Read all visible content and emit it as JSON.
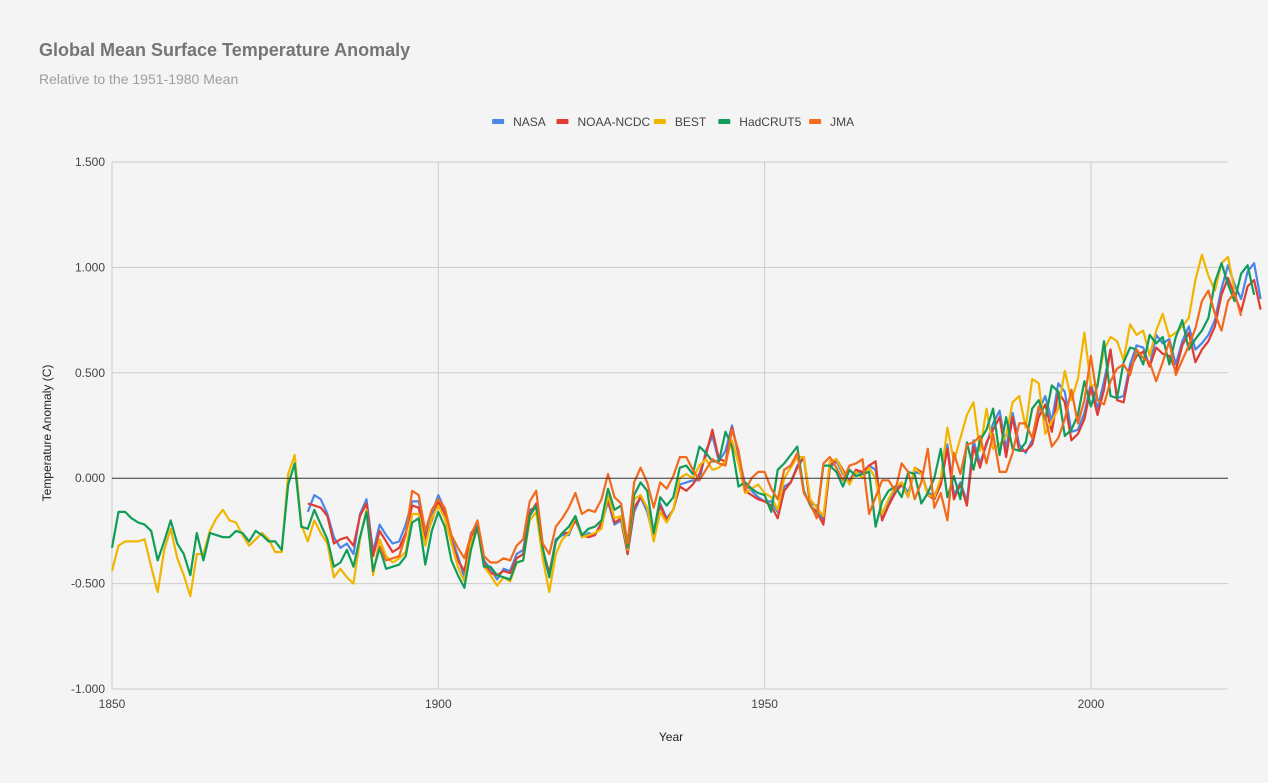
{
  "chart_data": {
    "type": "line",
    "title": "Global Mean Surface Temperature Anomaly",
    "subtitle": "Relative to the 1951-1980 Mean",
    "xlabel": "Year",
    "ylabel": "Temperature Anomaly (C)",
    "xlim": [
      1850,
      2021
    ],
    "ylim": [
      -1.0,
      1.5
    ],
    "x_ticks": [
      "1850",
      "1900",
      "1950",
      "2000"
    ],
    "y_ticks": [
      "1.500",
      "1.000",
      "0.500",
      "0.000",
      "-0.500",
      "-1.000"
    ],
    "grid": true,
    "legend_position": "top",
    "series": [
      {
        "name": "NASA",
        "color": "#4a86e8",
        "start": 1880,
        "values": [
          -0.16,
          -0.08,
          -0.1,
          -0.17,
          -0.28,
          -0.33,
          -0.31,
          -0.36,
          -0.17,
          -0.1,
          -0.35,
          -0.22,
          -0.27,
          -0.31,
          -0.3,
          -0.22,
          -0.11,
          -0.11,
          -0.27,
          -0.17,
          -0.08,
          -0.15,
          -0.28,
          -0.37,
          -0.47,
          -0.26,
          -0.22,
          -0.39,
          -0.43,
          -0.48,
          -0.43,
          -0.44,
          -0.36,
          -0.34,
          -0.15,
          -0.14,
          -0.36,
          -0.46,
          -0.29,
          -0.27,
          -0.27,
          -0.19,
          -0.28,
          -0.26,
          -0.27,
          -0.22,
          -0.11,
          -0.22,
          -0.2,
          -0.36,
          -0.16,
          -0.09,
          -0.16,
          -0.28,
          -0.12,
          -0.19,
          -0.15,
          -0.03,
          -0.02,
          -0.01,
          -0.01,
          0.13,
          0.2,
          0.08,
          0.13,
          0.25,
          0.11,
          -0.03,
          -0.06,
          -0.09,
          -0.11,
          -0.11,
          -0.16,
          -0.04,
          -0.02,
          0.06,
          0.1,
          -0.12,
          -0.13,
          -0.2,
          0.05,
          0.08,
          0.02,
          -0.01,
          0.04,
          0.02,
          0.06,
          0.04,
          -0.2,
          -0.11,
          -0.06,
          -0.02,
          -0.07,
          0.03,
          0.02,
          -0.07,
          -0.08,
          -0.02,
          0.16,
          -0.08,
          -0.02,
          -0.11,
          0.18,
          0.07,
          0.16,
          0.26,
          0.32,
          0.14,
          0.31,
          0.16,
          0.12,
          0.18,
          0.32,
          0.39,
          0.27,
          0.45,
          0.41,
          0.22,
          0.23,
          0.31,
          0.45,
          0.33,
          0.46,
          0.61,
          0.38,
          0.39,
          0.54,
          0.63,
          0.62,
          0.53,
          0.68,
          0.64,
          0.66,
          0.54,
          0.65,
          0.72,
          0.61,
          0.64,
          0.68,
          0.75,
          0.9,
          1.01,
          0.92,
          0.85,
          0.98,
          1.02,
          0.85
        ]
      },
      {
        "name": "NOAA-NCDC",
        "color": "#e03c31",
        "start": 1880,
        "values": [
          -0.12,
          -0.13,
          -0.14,
          -0.18,
          -0.31,
          -0.29,
          -0.28,
          -0.32,
          -0.18,
          -0.12,
          -0.37,
          -0.25,
          -0.3,
          -0.35,
          -0.33,
          -0.26,
          -0.13,
          -0.14,
          -0.29,
          -0.2,
          -0.11,
          -0.17,
          -0.3,
          -0.39,
          -0.44,
          -0.28,
          -0.23,
          -0.4,
          -0.45,
          -0.46,
          -0.44,
          -0.45,
          -0.38,
          -0.36,
          -0.17,
          -0.12,
          -0.34,
          -0.45,
          -0.3,
          -0.26,
          -0.26,
          -0.2,
          -0.27,
          -0.28,
          -0.27,
          -0.21,
          -0.1,
          -0.21,
          -0.19,
          -0.36,
          -0.14,
          -0.09,
          -0.14,
          -0.26,
          -0.13,
          -0.2,
          -0.15,
          -0.04,
          -0.06,
          -0.03,
          0.02,
          0.11,
          0.23,
          0.09,
          0.08,
          0.24,
          0.12,
          -0.06,
          -0.08,
          -0.1,
          -0.11,
          -0.13,
          -0.19,
          -0.06,
          -0.02,
          0.05,
          0.1,
          -0.13,
          -0.16,
          -0.22,
          0.06,
          0.09,
          0.04,
          -0.02,
          0.04,
          0.03,
          0.06,
          0.08,
          -0.2,
          -0.13,
          -0.07,
          -0.03,
          -0.09,
          0.05,
          0.03,
          -0.08,
          -0.1,
          -0.03,
          0.14,
          -0.1,
          -0.03,
          -0.13,
          0.15,
          0.05,
          0.17,
          0.23,
          0.29,
          0.1,
          0.29,
          0.13,
          0.13,
          0.16,
          0.29,
          0.35,
          0.22,
          0.41,
          0.36,
          0.18,
          0.21,
          0.28,
          0.43,
          0.3,
          0.42,
          0.61,
          0.37,
          0.36,
          0.52,
          0.58,
          0.6,
          0.53,
          0.62,
          0.59,
          0.58,
          0.51,
          0.63,
          0.69,
          0.55,
          0.61,
          0.65,
          0.72,
          0.87,
          0.95,
          0.87,
          0.79,
          0.91,
          0.94,
          0.8
        ]
      },
      {
        "name": "BEST",
        "color": "#f1b500",
        "start": 1850,
        "values": [
          -0.44,
          -0.32,
          -0.3,
          -0.3,
          -0.3,
          -0.29,
          -0.42,
          -0.54,
          -0.34,
          -0.24,
          -0.38,
          -0.46,
          -0.56,
          -0.36,
          -0.36,
          -0.25,
          -0.19,
          -0.15,
          -0.2,
          -0.21,
          -0.27,
          -0.32,
          -0.29,
          -0.26,
          -0.29,
          -0.35,
          -0.35,
          0.02,
          0.11,
          -0.22,
          -0.3,
          -0.2,
          -0.26,
          -0.31,
          -0.47,
          -0.43,
          -0.47,
          -0.5,
          -0.29,
          -0.15,
          -0.46,
          -0.29,
          -0.37,
          -0.4,
          -0.38,
          -0.35,
          -0.17,
          -0.17,
          -0.32,
          -0.19,
          -0.13,
          -0.19,
          -0.31,
          -0.42,
          -0.49,
          -0.31,
          -0.24,
          -0.42,
          -0.46,
          -0.51,
          -0.47,
          -0.49,
          -0.4,
          -0.39,
          -0.2,
          -0.16,
          -0.38,
          -0.54,
          -0.36,
          -0.29,
          -0.26,
          -0.18,
          -0.28,
          -0.27,
          -0.26,
          -0.24,
          -0.08,
          -0.19,
          -0.18,
          -0.34,
          -0.1,
          -0.08,
          -0.14,
          -0.3,
          -0.16,
          -0.21,
          -0.15,
          0.0,
          0.02,
          0.0,
          0.06,
          0.09,
          0.04,
          0.05,
          0.08,
          0.18,
          0.07,
          -0.07,
          -0.05,
          -0.03,
          -0.07,
          -0.09,
          -0.15,
          0.0,
          0.05,
          0.1,
          0.1,
          -0.1,
          -0.14,
          -0.18,
          0.08,
          0.09,
          0.03,
          -0.03,
          0.03,
          0.0,
          0.05,
          0.0,
          -0.17,
          -0.1,
          -0.04,
          -0.02,
          -0.09,
          0.05,
          0.02,
          -0.08,
          -0.09,
          0.0,
          0.24,
          0.08,
          0.19,
          0.3,
          0.36,
          0.13,
          0.33,
          0.14,
          0.16,
          0.2,
          0.36,
          0.39,
          0.24,
          0.47,
          0.45,
          0.21,
          0.27,
          0.33,
          0.51,
          0.37,
          0.47,
          0.69,
          0.44,
          0.44,
          0.61,
          0.67,
          0.65,
          0.56,
          0.73,
          0.68,
          0.7,
          0.58,
          0.7,
          0.78,
          0.67,
          0.69,
          0.72,
          0.76,
          0.94,
          1.06,
          0.96,
          0.89,
          1.02,
          1.05,
          0.89
        ]
      },
      {
        "name": "HadCRUT5",
        "color": "#0f9d58",
        "start": 1850,
        "values": [
          -0.33,
          -0.16,
          -0.16,
          -0.19,
          -0.21,
          -0.22,
          -0.25,
          -0.39,
          -0.3,
          -0.2,
          -0.31,
          -0.36,
          -0.46,
          -0.26,
          -0.39,
          -0.26,
          -0.27,
          -0.28,
          -0.28,
          -0.25,
          -0.26,
          -0.3,
          -0.25,
          -0.27,
          -0.3,
          -0.3,
          -0.34,
          -0.03,
          0.07,
          -0.23,
          -0.24,
          -0.15,
          -0.22,
          -0.29,
          -0.42,
          -0.4,
          -0.34,
          -0.42,
          -0.28,
          -0.16,
          -0.44,
          -0.33,
          -0.43,
          -0.42,
          -0.41,
          -0.37,
          -0.21,
          -0.19,
          -0.41,
          -0.25,
          -0.16,
          -0.23,
          -0.39,
          -0.46,
          -0.52,
          -0.34,
          -0.23,
          -0.42,
          -0.42,
          -0.46,
          -0.47,
          -0.48,
          -0.4,
          -0.39,
          -0.18,
          -0.13,
          -0.33,
          -0.47,
          -0.3,
          -0.26,
          -0.23,
          -0.18,
          -0.27,
          -0.24,
          -0.23,
          -0.2,
          -0.05,
          -0.15,
          -0.13,
          -0.33,
          -0.08,
          -0.02,
          -0.06,
          -0.26,
          -0.09,
          -0.13,
          -0.09,
          0.05,
          0.06,
          0.02,
          0.15,
          0.12,
          0.08,
          0.08,
          0.22,
          0.15,
          -0.04,
          -0.02,
          -0.05,
          -0.07,
          -0.08,
          -0.16,
          0.04,
          0.07,
          0.11,
          0.15,
          -0.06,
          -0.13,
          -0.18,
          0.06,
          0.06,
          0.03,
          -0.04,
          0.04,
          0.01,
          0.02,
          0.03,
          -0.23,
          -0.11,
          -0.06,
          -0.04,
          -0.09,
          0.03,
          0.02,
          -0.12,
          -0.07,
          0.0,
          0.14,
          -0.09,
          0.01,
          -0.1,
          0.17,
          0.04,
          0.18,
          0.23,
          0.33,
          0.11,
          0.29,
          0.14,
          0.13,
          0.17,
          0.33,
          0.37,
          0.28,
          0.44,
          0.41,
          0.2,
          0.23,
          0.3,
          0.46,
          0.34,
          0.44,
          0.65,
          0.39,
          0.38,
          0.55,
          0.62,
          0.61,
          0.54,
          0.68,
          0.64,
          0.67,
          0.54,
          0.67,
          0.75,
          0.61,
          0.66,
          0.7,
          0.76,
          0.93,
          1.02,
          0.92,
          0.84,
          0.97,
          1.01,
          0.87
        ]
      },
      {
        "name": "JMA",
        "color": "#f26a1b",
        "start": 1891,
        "values": [
          -0.32,
          -0.39,
          -0.38,
          -0.37,
          -0.27,
          -0.06,
          -0.08,
          -0.25,
          -0.15,
          -0.1,
          -0.14,
          -0.27,
          -0.33,
          -0.38,
          -0.27,
          -0.2,
          -0.37,
          -0.4,
          -0.4,
          -0.38,
          -0.39,
          -0.32,
          -0.29,
          -0.11,
          -0.06,
          -0.31,
          -0.36,
          -0.23,
          -0.19,
          -0.14,
          -0.07,
          -0.17,
          -0.15,
          -0.16,
          -0.1,
          0.02,
          -0.09,
          -0.12,
          -0.31,
          -0.02,
          0.05,
          -0.02,
          -0.14,
          -0.02,
          -0.05,
          0.01,
          0.1,
          0.1,
          0.04,
          -0.01,
          0.04,
          0.09,
          0.07,
          0.06,
          0.23,
          0.13,
          -0.06,
          0.0,
          0.03,
          0.03,
          -0.05,
          -0.1,
          0.04,
          0.06,
          0.12,
          -0.07,
          -0.12,
          -0.19,
          0.07,
          0.1,
          0.05,
          -0.01,
          0.06,
          0.07,
          0.09,
          -0.17,
          -0.09,
          -0.01,
          -0.01,
          -0.06,
          0.07,
          0.03,
          -0.1,
          -0.02,
          0.14,
          -0.14,
          -0.07,
          -0.2,
          0.12,
          0.02,
          0.16,
          0.17,
          0.2,
          0.07,
          0.21,
          0.03,
          0.03,
          0.12,
          0.26,
          0.26,
          0.19,
          0.34,
          0.29,
          0.15,
          0.19,
          0.28,
          0.42,
          0.26,
          0.37,
          0.58,
          0.37,
          0.35,
          0.46,
          0.52,
          0.54,
          0.49,
          0.61,
          0.57,
          0.55,
          0.46,
          0.55,
          0.65,
          0.49,
          0.56,
          0.63,
          0.71,
          0.84,
          0.89,
          0.78,
          0.7,
          0.84,
          0.88,
          0.77
        ]
      }
    ]
  }
}
